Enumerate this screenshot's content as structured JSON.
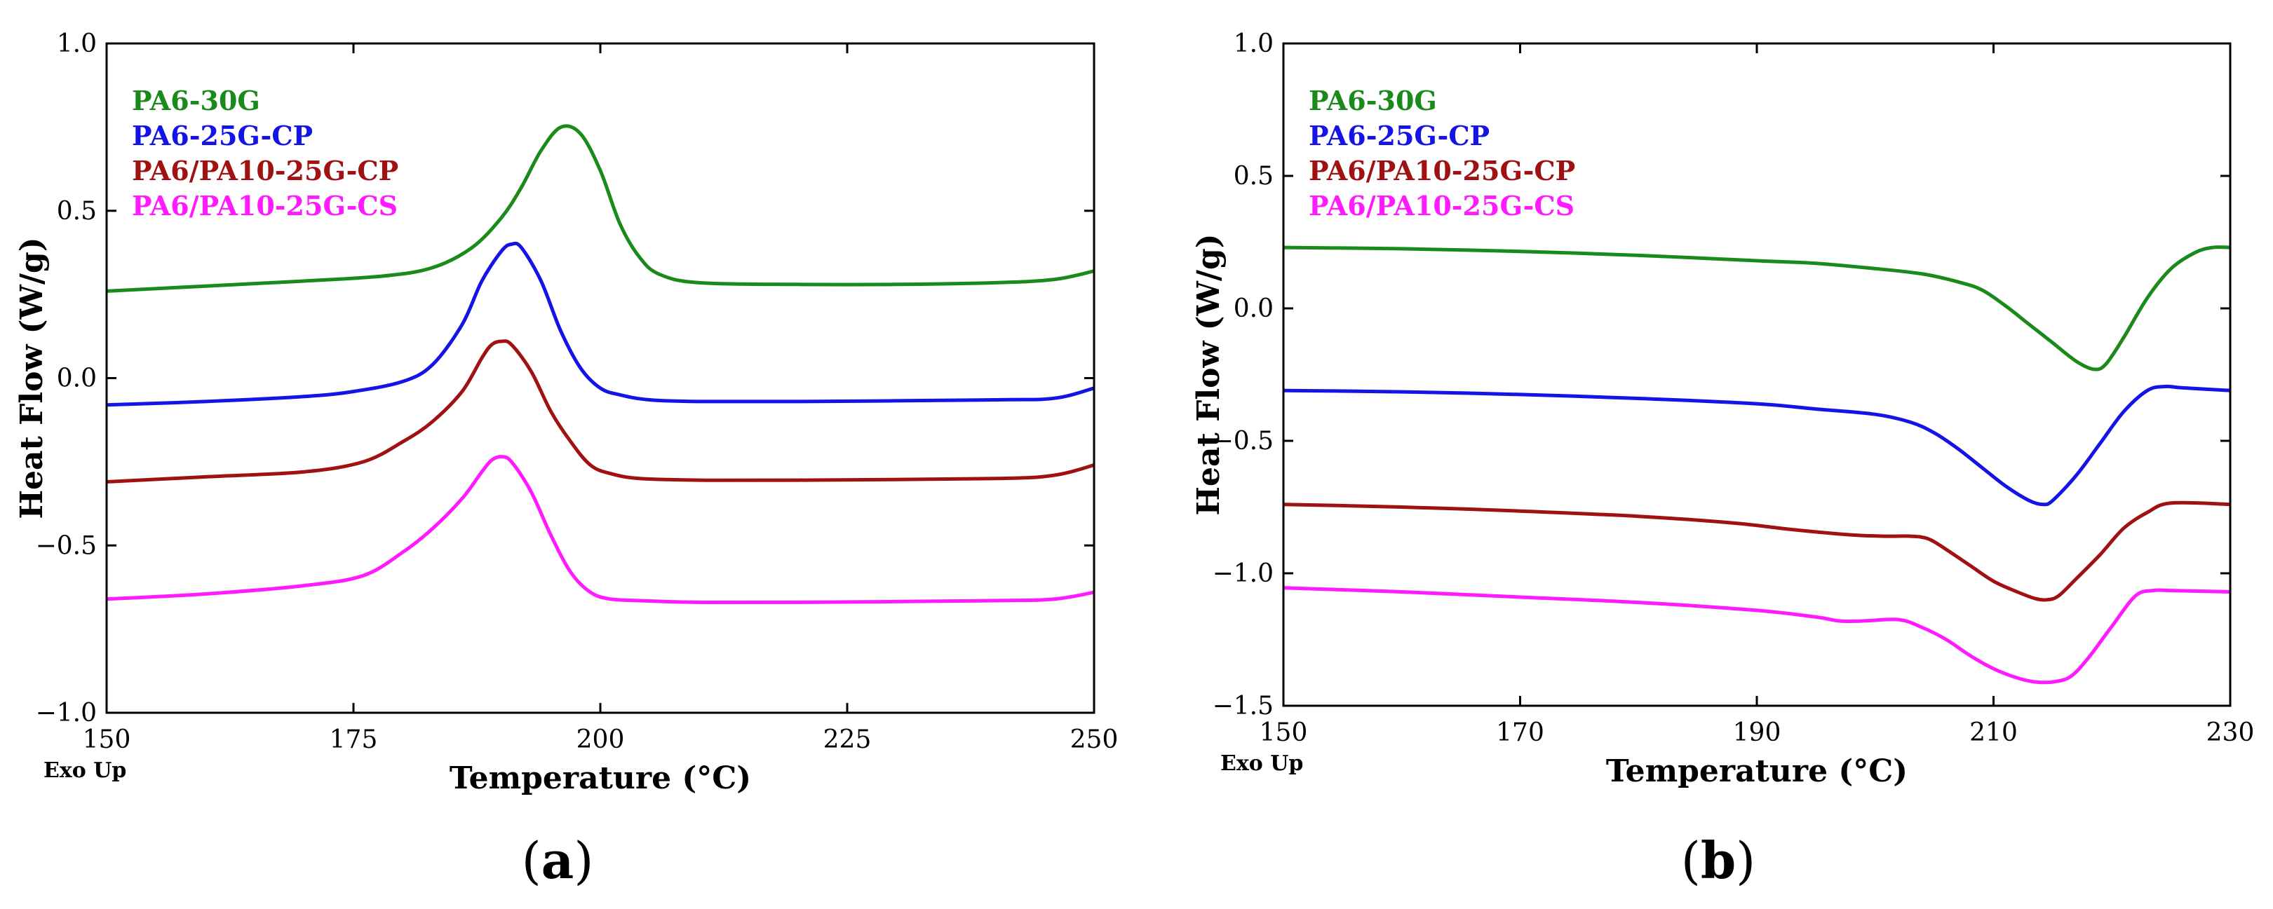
{
  "chart_data": [
    {
      "type": "line",
      "panel_label": "a",
      "xlabel": "Temperature (°C)",
      "ylabel": "Heat Flow (W/g)",
      "corner_note": "Exo Up",
      "xlim": [
        150,
        250
      ],
      "ylim": [
        -1.0,
        1.0
      ],
      "xticks": [
        150,
        175,
        200,
        225,
        250
      ],
      "yticks": [
        -1.0,
        -0.5,
        0.0,
        0.5,
        1.0
      ],
      "xtick_labels": [
        "150",
        "175",
        "200",
        "225",
        "250"
      ],
      "ytick_labels": [
        "−1.0",
        "−0.5",
        "0.0",
        "0.5",
        "1.0"
      ],
      "legend_position": "top-left",
      "series": [
        {
          "name": "PA6-30G",
          "color": "#1a8a1a",
          "x": [
            150,
            160,
            170,
            178,
            183,
            187,
            190,
            192,
            194,
            196,
            198,
            200,
            202,
            204,
            206,
            210,
            220,
            230,
            240,
            246,
            250
          ],
          "y": [
            0.26,
            0.275,
            0.29,
            0.305,
            0.33,
            0.39,
            0.48,
            0.57,
            0.68,
            0.75,
            0.73,
            0.62,
            0.46,
            0.36,
            0.31,
            0.285,
            0.28,
            0.28,
            0.285,
            0.295,
            0.32
          ]
        },
        {
          "name": "PA6-25G-CP",
          "color": "#1414e6",
          "x": [
            150,
            160,
            170,
            175,
            180,
            183,
            186,
            188,
            190,
            191,
            192,
            194,
            196,
            198,
            200,
            202,
            205,
            210,
            220,
            240,
            246,
            250
          ],
          "y": [
            -0.08,
            -0.07,
            -0.055,
            -0.04,
            -0.01,
            0.04,
            0.16,
            0.29,
            0.38,
            0.4,
            0.39,
            0.29,
            0.14,
            0.03,
            -0.03,
            -0.05,
            -0.065,
            -0.07,
            -0.07,
            -0.065,
            -0.06,
            -0.03
          ]
        },
        {
          "name": "PA6/PA10-25G-CP",
          "color": "#a01212",
          "x": [
            150,
            160,
            170,
            176,
            180,
            183,
            186,
            188,
            189,
            190,
            191,
            193,
            195,
            197,
            199,
            201,
            204,
            210,
            220,
            240,
            246,
            250
          ],
          "y": [
            -0.31,
            -0.295,
            -0.28,
            -0.25,
            -0.19,
            -0.13,
            -0.04,
            0.06,
            0.1,
            0.11,
            0.1,
            0.02,
            -0.1,
            -0.19,
            -0.26,
            -0.285,
            -0.3,
            -0.305,
            -0.305,
            -0.3,
            -0.29,
            -0.26
          ]
        },
        {
          "name": "PA6/PA10-25G-CS",
          "color": "#ff1aff",
          "x": [
            150,
            160,
            170,
            176,
            180,
            183,
            186,
            188,
            189,
            190,
            191,
            193,
            195,
            197,
            199,
            201,
            204,
            210,
            220,
            240,
            246,
            250
          ],
          "y": [
            -0.66,
            -0.645,
            -0.62,
            -0.59,
            -0.52,
            -0.45,
            -0.36,
            -0.28,
            -0.245,
            -0.235,
            -0.25,
            -0.34,
            -0.47,
            -0.58,
            -0.64,
            -0.66,
            -0.665,
            -0.67,
            -0.67,
            -0.665,
            -0.66,
            -0.64
          ]
        }
      ]
    },
    {
      "type": "line",
      "panel_label": "b",
      "xlabel": "Temperature (°C)",
      "ylabel": "Heat Flow (W/g)",
      "corner_note": "Exo Up",
      "xlim": [
        150,
        230
      ],
      "ylim": [
        -1.5,
        1.0
      ],
      "xticks": [
        150,
        170,
        190,
        210,
        230
      ],
      "yticks": [
        -1.5,
        -1.0,
        -0.5,
        0.0,
        0.5,
        1.0
      ],
      "xtick_labels": [
        "150",
        "170",
        "190",
        "210",
        "230"
      ],
      "ytick_labels": [
        "−1.5",
        "−1.0",
        "−0.5",
        "0.0",
        "0.5",
        "1.0"
      ],
      "legend_position": "top-left",
      "series": [
        {
          "name": "PA6-30G",
          "color": "#1a8a1a",
          "x": [
            150,
            160,
            170,
            180,
            190,
            195,
            200,
            204,
            207,
            209,
            211,
            213,
            215,
            217,
            218.5,
            219.5,
            221,
            223,
            225,
            227,
            228.5,
            230
          ],
          "y": [
            0.23,
            0.225,
            0.215,
            0.2,
            0.18,
            0.17,
            0.15,
            0.13,
            0.1,
            0.07,
            0.01,
            -0.06,
            -0.13,
            -0.2,
            -0.23,
            -0.21,
            -0.11,
            0.04,
            0.15,
            0.21,
            0.23,
            0.23
          ]
        },
        {
          "name": "PA6-25G-CP",
          "color": "#1414e6",
          "x": [
            150,
            160,
            170,
            180,
            190,
            195,
            200,
            203,
            205,
            207,
            209,
            211,
            213,
            214.2,
            215,
            217,
            219,
            221,
            223,
            224.5,
            226,
            230
          ],
          "y": [
            -0.31,
            -0.315,
            -0.325,
            -0.34,
            -0.36,
            -0.38,
            -0.4,
            -0.43,
            -0.47,
            -0.53,
            -0.6,
            -0.67,
            -0.725,
            -0.74,
            -0.725,
            -0.63,
            -0.51,
            -0.39,
            -0.31,
            -0.295,
            -0.3,
            -0.31
          ]
        },
        {
          "name": "PA6/PA10-25G-CP",
          "color": "#a01212",
          "x": [
            150,
            160,
            170,
            180,
            188,
            193,
            198,
            201,
            203,
            204.5,
            206,
            208,
            210,
            212,
            213.5,
            214.5,
            215.5,
            217,
            219,
            221,
            223,
            225,
            230
          ],
          "y": [
            -0.74,
            -0.75,
            -0.765,
            -0.785,
            -0.81,
            -0.835,
            -0.855,
            -0.86,
            -0.86,
            -0.87,
            -0.91,
            -0.97,
            -1.03,
            -1.07,
            -1.095,
            -1.1,
            -1.085,
            -1.02,
            -0.93,
            -0.83,
            -0.77,
            -0.735,
            -0.74
          ]
        },
        {
          "name": "PA6/PA10-25G-CS",
          "color": "#ff1aff",
          "x": [
            150,
            160,
            170,
            180,
            190,
            195,
            197,
            199,
            202,
            204,
            206,
            208,
            210,
            212,
            213.5,
            215,
            216.5,
            218,
            220,
            222,
            223.5,
            225,
            230
          ],
          "y": [
            -1.055,
            -1.07,
            -1.09,
            -1.11,
            -1.14,
            -1.165,
            -1.18,
            -1.18,
            -1.175,
            -1.205,
            -1.25,
            -1.31,
            -1.36,
            -1.395,
            -1.41,
            -1.41,
            -1.39,
            -1.32,
            -1.2,
            -1.085,
            -1.065,
            -1.065,
            -1.07
          ]
        }
      ]
    }
  ]
}
